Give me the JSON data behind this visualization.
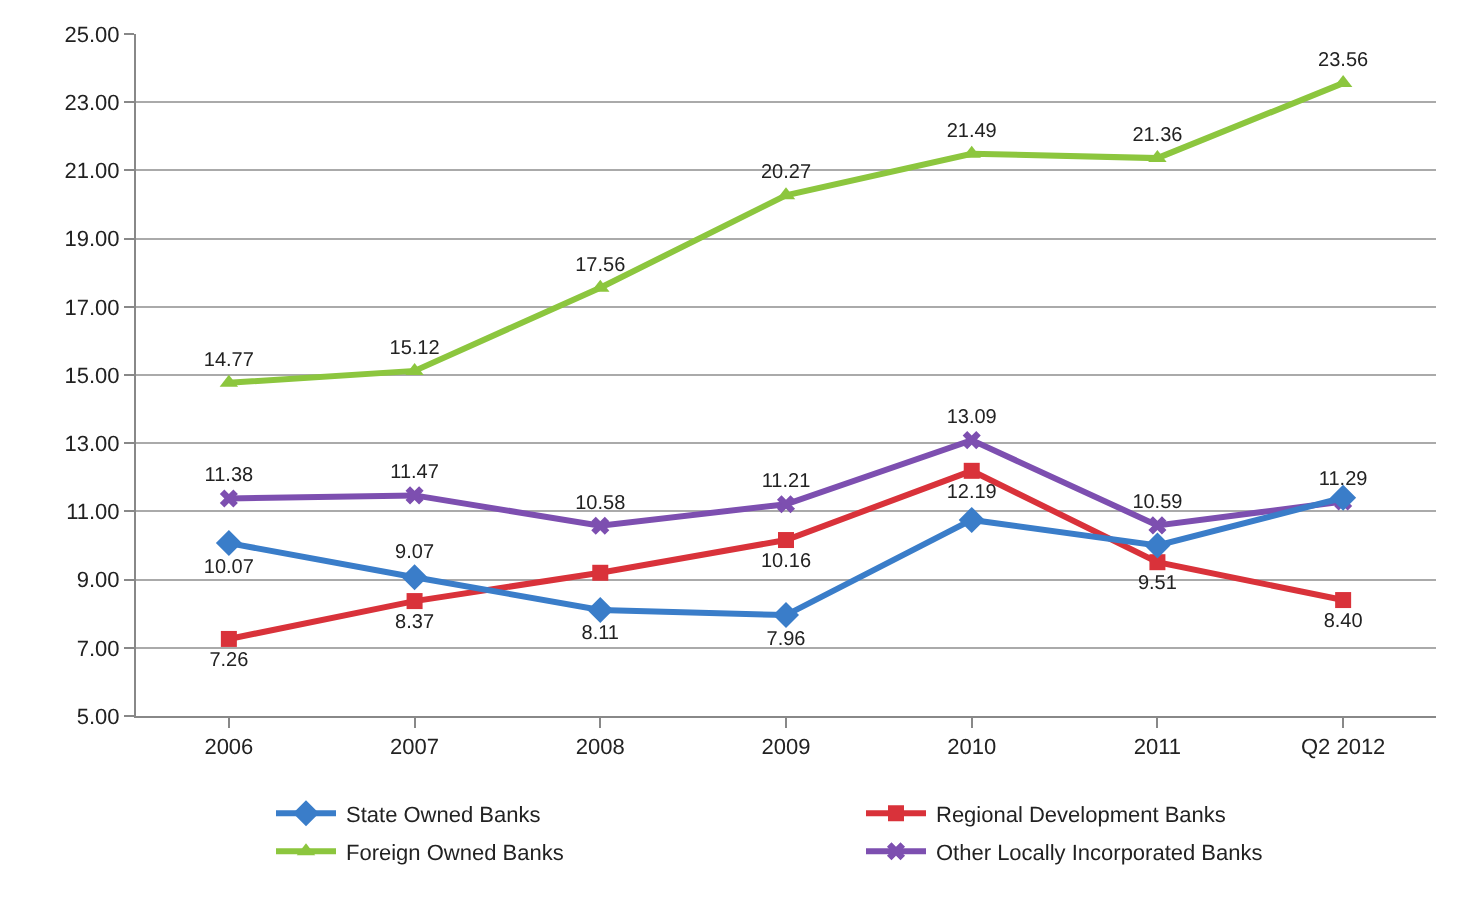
{
  "chart_data": {
    "type": "line",
    "categories": [
      "2006",
      "2007",
      "2008",
      "2009",
      "2010",
      "2011",
      "Q2 2012"
    ],
    "series": [
      {
        "name": "State Owned Banks",
        "color": "#3a7dc9",
        "marker": "diamond",
        "values": [
          10.07,
          9.07,
          8.11,
          7.96,
          10.75,
          10.0,
          11.4
        ],
        "value_labels": [
          "10.07",
          "9.07",
          "8.11",
          "7.96",
          null,
          null,
          null
        ]
      },
      {
        "name": "Regional Development Banks",
        "color": "#d9323a",
        "marker": "square",
        "values": [
          7.26,
          8.37,
          9.2,
          10.16,
          12.19,
          9.51,
          8.4
        ],
        "value_labels": [
          "7.26",
          "8.37",
          null,
          "10.16",
          "12.19",
          "9.51",
          "8.40"
        ]
      },
      {
        "name": "Foreign Owned Banks",
        "color": "#8cc63e",
        "marker": "triangle",
        "values": [
          14.77,
          15.12,
          17.56,
          20.27,
          21.49,
          21.36,
          23.56
        ],
        "value_labels": [
          "14.77",
          "15.12",
          "17.56",
          "20.27",
          "21.49",
          "21.36",
          "23.56"
        ]
      },
      {
        "name": "Other Locally Incorporated Banks",
        "color": "#7d4fb0",
        "marker": "cross",
        "values": [
          11.38,
          11.47,
          10.58,
          11.21,
          13.09,
          10.59,
          11.29
        ],
        "value_labels": [
          "11.38",
          "11.47",
          "10.58",
          "11.21",
          "13.09",
          "10.59",
          "11.29"
        ]
      }
    ],
    "ylim": [
      5,
      25
    ],
    "yticks": [
      {
        "value": 5,
        "label": "5.00"
      },
      {
        "value": 7,
        "label": "7.00"
      },
      {
        "value": 9,
        "label": "9.00"
      },
      {
        "value": 11,
        "label": "11.00"
      },
      {
        "value": 13,
        "label": "13.00"
      },
      {
        "value": 15,
        "label": "15.00"
      },
      {
        "value": 17,
        "label": "17.00"
      },
      {
        "value": 19,
        "label": "19.00"
      },
      {
        "value": 21,
        "label": "21.00"
      },
      {
        "value": 23,
        "label": "23.00"
      },
      {
        "value": 25,
        "label": "25.00"
      }
    ],
    "grid": "y",
    "legend": "bottom"
  }
}
